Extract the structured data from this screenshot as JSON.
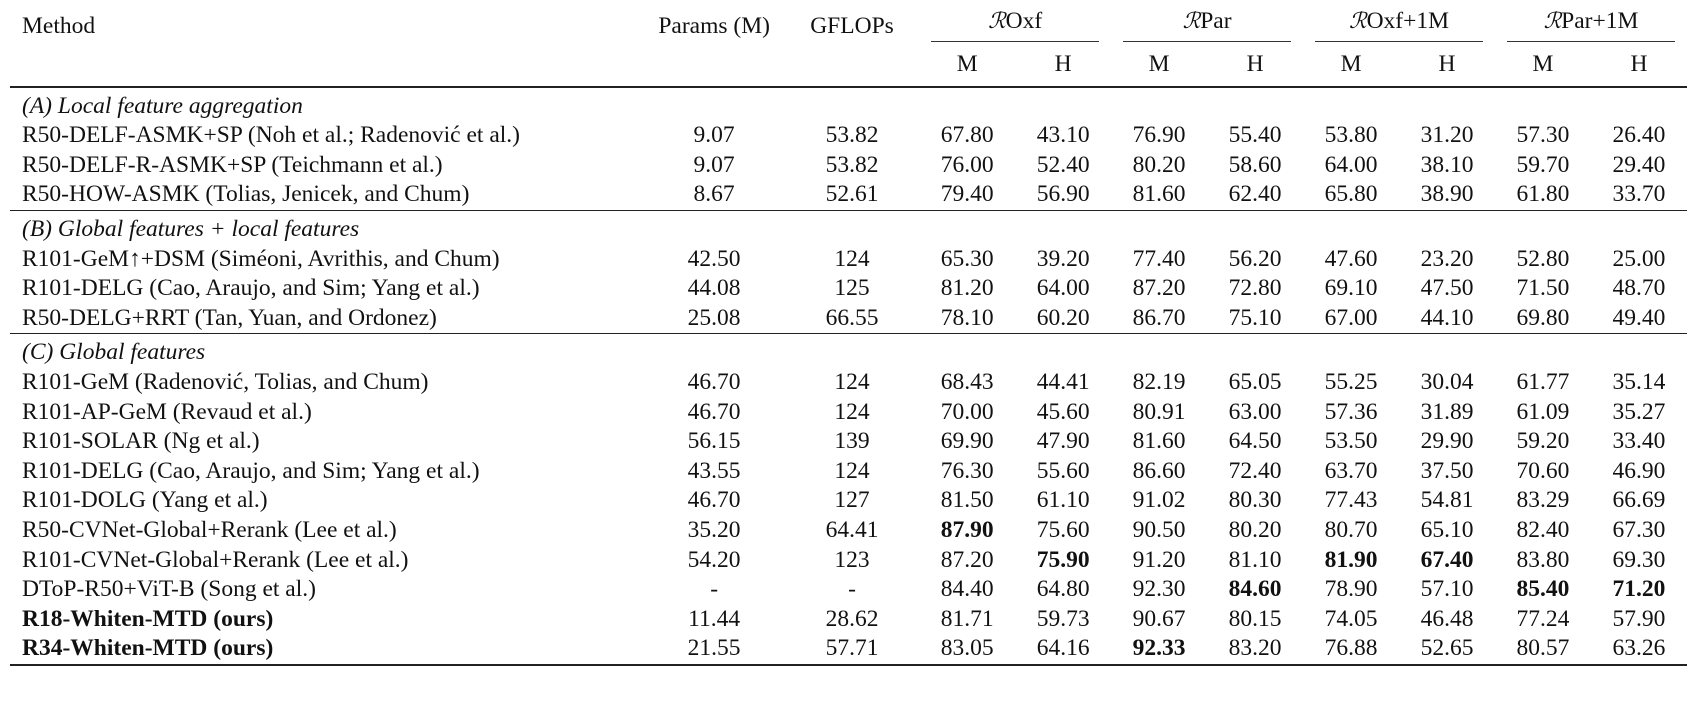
{
  "table": {
    "header": {
      "method": "Method",
      "params": "Params (M)",
      "gflops": "GFLOPs",
      "groups": [
        {
          "script": "ℛ",
          "label": "Oxf"
        },
        {
          "script": "ℛ",
          "label": "Par"
        },
        {
          "script": "ℛ",
          "label": "Oxf+1M"
        },
        {
          "script": "ℛ",
          "label": "Par+1M"
        }
      ],
      "subcols": [
        "M",
        "H",
        "M",
        "H",
        "M",
        "H",
        "M",
        "H"
      ]
    },
    "sections": [
      {
        "title": "(A) Local feature aggregation",
        "rows": [
          {
            "method": "R50-DELF-ASMK+SP (Noh et al.; Radenović et al.)",
            "params": "9.07",
            "gflops": "53.82",
            "values": [
              "67.80",
              "43.10",
              "76.90",
              "55.40",
              "53.80",
              "31.20",
              "57.30",
              "26.40"
            ],
            "bold_method": false,
            "bold_values": []
          },
          {
            "method": "R50-DELF-R-ASMK+SP (Teichmann et al.)",
            "params": "9.07",
            "gflops": "53.82",
            "values": [
              "76.00",
              "52.40",
              "80.20",
              "58.60",
              "64.00",
              "38.10",
              "59.70",
              "29.40"
            ],
            "bold_method": false,
            "bold_values": []
          },
          {
            "method": "R50-HOW-ASMK (Tolias, Jenicek, and Chum)",
            "params": "8.67",
            "gflops": "52.61",
            "values": [
              "79.40",
              "56.90",
              "81.60",
              "62.40",
              "65.80",
              "38.90",
              "61.80",
              "33.70"
            ],
            "bold_method": false,
            "bold_values": []
          }
        ]
      },
      {
        "title": "(B) Global features + local features",
        "rows": [
          {
            "method": "R101-GeM↑+DSM (Siméoni, Avrithis, and Chum)",
            "params": "42.50",
            "gflops": "124",
            "values": [
              "65.30",
              "39.20",
              "77.40",
              "56.20",
              "47.60",
              "23.20",
              "52.80",
              "25.00"
            ],
            "bold_method": false,
            "bold_values": []
          },
          {
            "method": "R101-DELG (Cao, Araujo, and Sim; Yang et al.)",
            "params": "44.08",
            "gflops": "125",
            "values": [
              "81.20",
              "64.00",
              "87.20",
              "72.80",
              "69.10",
              "47.50",
              "71.50",
              "48.70"
            ],
            "bold_method": false,
            "bold_values": []
          },
          {
            "method": "R50-DELG+RRT (Tan, Yuan, and Ordonez)",
            "params": "25.08",
            "gflops": "66.55",
            "values": [
              "78.10",
              "60.20",
              "86.70",
              "75.10",
              "67.00",
              "44.10",
              "69.80",
              "49.40"
            ],
            "bold_method": false,
            "bold_values": []
          }
        ]
      },
      {
        "title": "(C) Global features",
        "rows": [
          {
            "method": "R101-GeM (Radenović, Tolias, and Chum)",
            "params": "46.70",
            "gflops": "124",
            "values": [
              "68.43",
              "44.41",
              "82.19",
              "65.05",
              "55.25",
              "30.04",
              "61.77",
              "35.14"
            ],
            "bold_method": false,
            "bold_values": []
          },
          {
            "method": "R101-AP-GeM (Revaud et al.)",
            "params": "46.70",
            "gflops": "124",
            "values": [
              "70.00",
              "45.60",
              "80.91",
              "63.00",
              "57.36",
              "31.89",
              "61.09",
              "35.27"
            ],
            "bold_method": false,
            "bold_values": []
          },
          {
            "method": "R101-SOLAR (Ng et al.)",
            "params": "56.15",
            "gflops": "139",
            "values": [
              "69.90",
              "47.90",
              "81.60",
              "64.50",
              "53.50",
              "29.90",
              "59.20",
              "33.40"
            ],
            "bold_method": false,
            "bold_values": []
          },
          {
            "method": "R101-DELG (Cao, Araujo, and Sim; Yang et al.)",
            "params": "43.55",
            "gflops": "124",
            "values": [
              "76.30",
              "55.60",
              "86.60",
              "72.40",
              "63.70",
              "37.50",
              "70.60",
              "46.90"
            ],
            "bold_method": false,
            "bold_values": []
          },
          {
            "method": "R101-DOLG (Yang et al.)",
            "params": "46.70",
            "gflops": "127",
            "values": [
              "81.50",
              "61.10",
              "91.02",
              "80.30",
              "77.43",
              "54.81",
              "83.29",
              "66.69"
            ],
            "bold_method": false,
            "bold_values": []
          },
          {
            "method": "R50-CVNet-Global+Rerank (Lee et al.)",
            "params": "35.20",
            "gflops": "64.41",
            "values": [
              "87.90",
              "75.60",
              "90.50",
              "80.20",
              "80.70",
              "65.10",
              "82.40",
              "67.30"
            ],
            "bold_method": false,
            "bold_values": [
              0
            ]
          },
          {
            "method": "R101-CVNet-Global+Rerank (Lee et al.)",
            "params": "54.20",
            "gflops": "123",
            "values": [
              "87.20",
              "75.90",
              "91.20",
              "81.10",
              "81.90",
              "67.40",
              "83.80",
              "69.30"
            ],
            "bold_method": false,
            "bold_values": [
              1,
              4,
              5
            ]
          },
          {
            "method": "DToP-R50+ViT-B (Song et al.)",
            "params": "-",
            "gflops": "-",
            "values": [
              "84.40",
              "64.80",
              "92.30",
              "84.60",
              "78.90",
              "57.10",
              "85.40",
              "71.20"
            ],
            "bold_method": false,
            "bold_values": [
              3,
              6,
              7
            ]
          },
          {
            "method": "R18-Whiten-MTD (ours)",
            "params": "11.44",
            "gflops": "28.62",
            "values": [
              "81.71",
              "59.73",
              "90.67",
              "80.15",
              "74.05",
              "46.48",
              "77.24",
              "57.90"
            ],
            "bold_method": true,
            "bold_values": []
          },
          {
            "method": "R34-Whiten-MTD (ours)",
            "params": "21.55",
            "gflops": "57.71",
            "values": [
              "83.05",
              "64.16",
              "92.33",
              "83.20",
              "76.88",
              "52.65",
              "80.57",
              "63.26"
            ],
            "bold_method": true,
            "bold_values": [
              2
            ]
          }
        ]
      }
    ]
  }
}
